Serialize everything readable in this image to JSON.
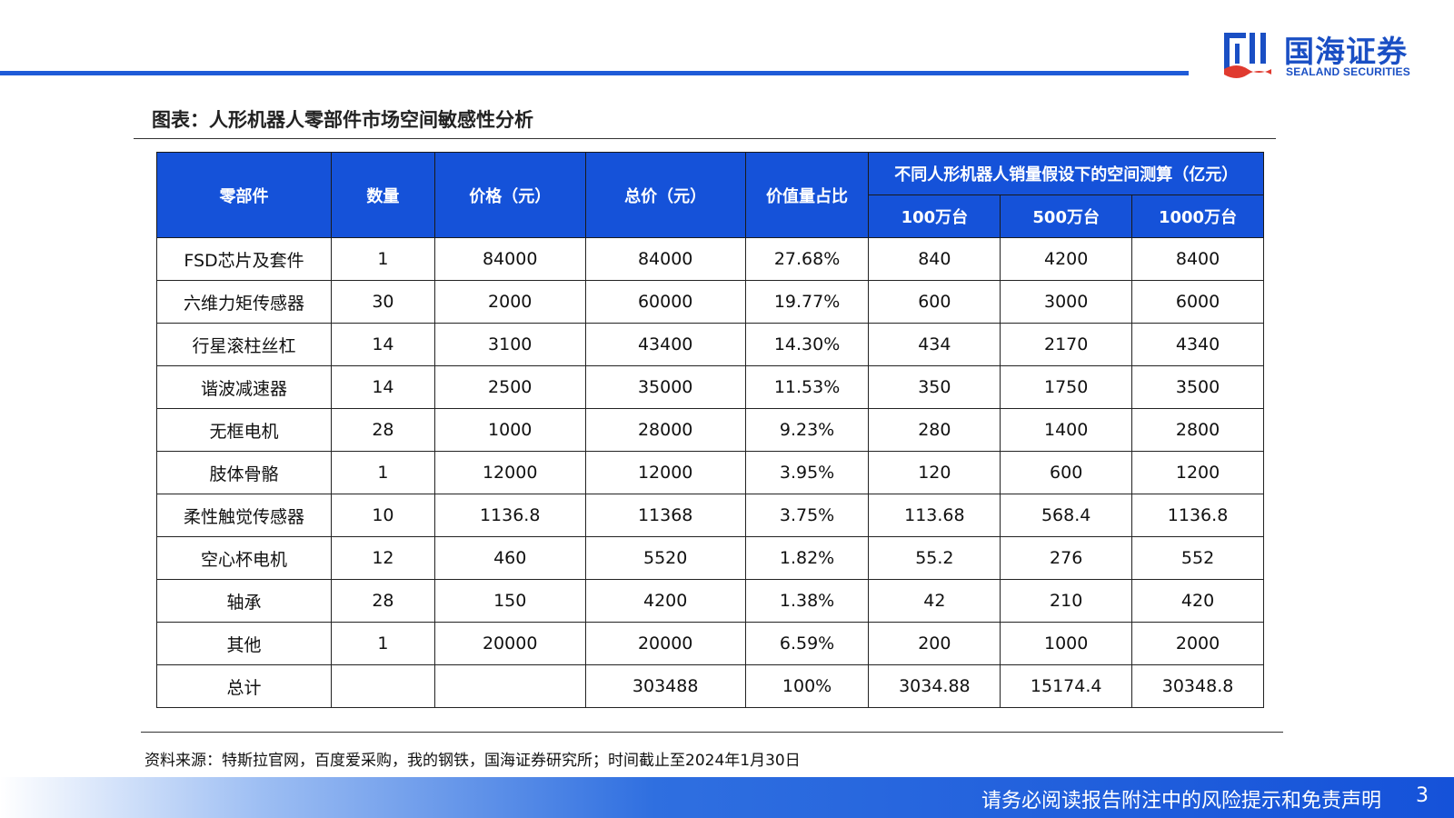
{
  "header": {
    "logo_cn": "国海证券",
    "logo_en": "SEALAND SECURITIES",
    "colors": {
      "brand_blue": "#1552d9"
    }
  },
  "figure_title": "图表：人形机器人零部件市场空间敏感性分析",
  "table": {
    "columns": [
      "零部件",
      "数量",
      "价格（元）",
      "总价（元）",
      "价值量占比"
    ],
    "group_header": "不同人形机器人销量假设下的空间测算（亿元）",
    "sub_columns": [
      "100万台",
      "500万台",
      "1000万台"
    ],
    "rows": [
      [
        "FSD芯片及套件",
        "1",
        "84000",
        "84000",
        "27.68%",
        "840",
        "4200",
        "8400"
      ],
      [
        "六维力矩传感器",
        "30",
        "2000",
        "60000",
        "19.77%",
        "600",
        "3000",
        "6000"
      ],
      [
        "行星滚柱丝杠",
        "14",
        "3100",
        "43400",
        "14.30%",
        "434",
        "2170",
        "4340"
      ],
      [
        "谐波减速器",
        "14",
        "2500",
        "35000",
        "11.53%",
        "350",
        "1750",
        "3500"
      ],
      [
        "无框电机",
        "28",
        "1000",
        "28000",
        "9.23%",
        "280",
        "1400",
        "2800"
      ],
      [
        "肢体骨骼",
        "1",
        "12000",
        "12000",
        "3.95%",
        "120",
        "600",
        "1200"
      ],
      [
        "柔性触觉传感器",
        "10",
        "1136.8",
        "11368",
        "3.75%",
        "113.68",
        "568.4",
        "1136.8"
      ],
      [
        "空心杯电机",
        "12",
        "460",
        "5520",
        "1.82%",
        "55.2",
        "276",
        "552"
      ],
      [
        "轴承",
        "28",
        "150",
        "4200",
        "1.38%",
        "42",
        "210",
        "420"
      ],
      [
        "其他",
        "1",
        "20000",
        "20000",
        "6.59%",
        "200",
        "1000",
        "2000"
      ],
      [
        "总计",
        "",
        "",
        "303488",
        "100%",
        "3034.88",
        "15174.4",
        "30348.8"
      ]
    ]
  },
  "source_note": "资料来源：特斯拉官网，百度爱采购，我的钢铁，国海证券研究所；时间截止至2024年1月30日",
  "footer": {
    "disclaimer": "请务必阅读报告附注中的风险提示和免责声明",
    "page_number": "3"
  }
}
